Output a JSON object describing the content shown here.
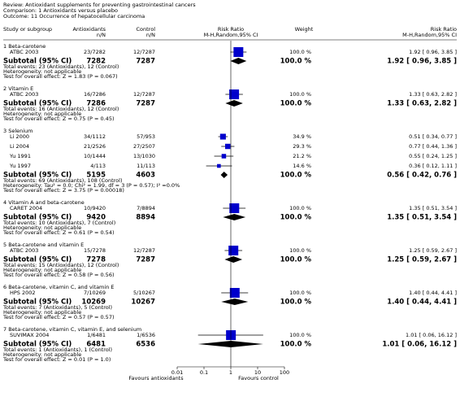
{
  "chart_data": {
    "type": "forest",
    "review": "Review: Antioxidant supplements for preventing gastrointestinal cancers",
    "comparison": "Comparison: 1 Antioxidants versus placebo",
    "outcome": "Outcome: 11 Occurrence of hepatocellular carcinoma",
    "header": {
      "study": "Study or subgroup",
      "treatment": "Antioxidants",
      "treatment_unit": "n/N",
      "control": "Control",
      "control_unit": "n/N",
      "plot_title": "Risk Ratio",
      "plot_method": "M-H,Random,95% CI",
      "weight": "Weight",
      "rr_title": "Risk Ratio",
      "rr_method": "M-H,Random,95% CI"
    },
    "xlim": [
      0.01,
      100
    ],
    "xticks": [
      0.01,
      0.1,
      1,
      10,
      100
    ],
    "log_scale": true,
    "favours_left": "Favours antioxidants",
    "favours_right": "Favours control",
    "box_color": "#0000cc",
    "groups": [
      {
        "title": "1 Beta-carotene",
        "studies": [
          {
            "name": "ATBC 2003",
            "treatment": "23/7282",
            "control": "12/7287",
            "weight": 100.0,
            "weight_label": "100.0 %",
            "rr": 1.92,
            "lo": 0.96,
            "hi": 3.85,
            "rr_label": "1.92 [ 0.96, 3.85 ]"
          }
        ],
        "subtotal": {
          "label": "Subtotal (95% CI)",
          "treatment": 7282,
          "control": 7287,
          "weight_label": "100.0 %",
          "rr": 1.92,
          "lo": 0.96,
          "hi": 3.85,
          "rr_label": "1.92 [ 0.96, 3.85 ]"
        },
        "total_events": "Total events: 23 (Antioxidants), 12 (Control)",
        "heterogeneity": "Heterogeneity: not applicable",
        "overall_effect": "Test for overall effect: Z = 1.83 (P = 0.067)"
      },
      {
        "title": "2 Vitamin E",
        "studies": [
          {
            "name": "ATBC 2003",
            "treatment": "16/7286",
            "control": "12/7287",
            "weight": 100.0,
            "weight_label": "100.0 %",
            "rr": 1.33,
            "lo": 0.63,
            "hi": 2.82,
            "rr_label": "1.33 [ 0.63, 2.82 ]"
          }
        ],
        "subtotal": {
          "label": "Subtotal (95% CI)",
          "treatment": 7286,
          "control": 7287,
          "weight_label": "100.0 %",
          "rr": 1.33,
          "lo": 0.63,
          "hi": 2.82,
          "rr_label": "1.33 [ 0.63, 2.82 ]"
        },
        "total_events": "Total events: 16 (Antioxidants), 12 (Control)",
        "heterogeneity": "Heterogeneity: not applicable",
        "overall_effect": "Test for overall effect: Z = 0.75 (P = 0.45)"
      },
      {
        "title": "3 Selenium",
        "studies": [
          {
            "name": "Li 2000",
            "treatment": "34/1112",
            "control": "57/953",
            "weight": 34.9,
            "weight_label": "34.9 %",
            "rr": 0.51,
            "lo": 0.34,
            "hi": 0.77,
            "rr_label": "0.51 [ 0.34, 0.77 ]"
          },
          {
            "name": "Li 2004",
            "treatment": "21/2526",
            "control": "27/2507",
            "weight": 29.3,
            "weight_label": "29.3 %",
            "rr": 0.77,
            "lo": 0.44,
            "hi": 1.36,
            "rr_label": "0.77 [ 0.44, 1.36 ]"
          },
          {
            "name": "Yu 1991",
            "treatment": "10/1444",
            "control": "13/1030",
            "weight": 21.2,
            "weight_label": "21.2 %",
            "rr": 0.55,
            "lo": 0.24,
            "hi": 1.25,
            "rr_label": "0.55 [ 0.24, 1.25 ]"
          },
          {
            "name": "Yu 1997",
            "treatment": "4/113",
            "control": "11/113",
            "weight": 14.6,
            "weight_label": "14.6 %",
            "rr": 0.36,
            "lo": 0.12,
            "hi": 1.11,
            "rr_label": "0.36 [ 0.12, 1.11 ]"
          }
        ],
        "subtotal": {
          "label": "Subtotal (95% CI)",
          "treatment": 5195,
          "control": 4603,
          "weight_label": "100.0 %",
          "rr": 0.56,
          "lo": 0.42,
          "hi": 0.76,
          "rr_label": "0.56 [ 0.42, 0.76 ]"
        },
        "total_events": "Total events: 69 (Antioxidants), 108 (Control)",
        "heterogeneity": "Heterogeneity: Tau² = 0.0; Chi² = 1.99, df = 3 (P = 0.57); I² =0.0%",
        "overall_effect": "Test for overall effect: Z = 3.75 (P = 0.00018)"
      },
      {
        "title": "4 Vitamin A and beta-carotene",
        "studies": [
          {
            "name": "CARET 2004",
            "treatment": "10/9420",
            "control": "7/8894",
            "weight": 100.0,
            "weight_label": "100.0 %",
            "rr": 1.35,
            "lo": 0.51,
            "hi": 3.54,
            "rr_label": "1.35 [ 0.51, 3.54 ]"
          }
        ],
        "subtotal": {
          "label": "Subtotal (95% CI)",
          "treatment": 9420,
          "control": 8894,
          "weight_label": "100.0 %",
          "rr": 1.35,
          "lo": 0.51,
          "hi": 3.54,
          "rr_label": "1.35 [ 0.51, 3.54 ]"
        },
        "total_events": "Total events: 10 (Antioxidants), 7 (Control)",
        "heterogeneity": "Heterogeneity: not applicable",
        "overall_effect": "Test for overall effect: Z = 0.61 (P = 0.54)"
      },
      {
        "title": "5 Beta-carotene and vitamin E",
        "studies": [
          {
            "name": "ATBC 2003",
            "treatment": "15/7278",
            "control": "12/7287",
            "weight": 100.0,
            "weight_label": "100.0 %",
            "rr": 1.25,
            "lo": 0.59,
            "hi": 2.67,
            "rr_label": "1.25 [ 0.59, 2.67 ]"
          }
        ],
        "subtotal": {
          "label": "Subtotal (95% CI)",
          "treatment": 7278,
          "control": 7287,
          "weight_label": "100.0 %",
          "rr": 1.25,
          "lo": 0.59,
          "hi": 2.67,
          "rr_label": "1.25 [ 0.59, 2.67 ]"
        },
        "total_events": "Total events: 15 (Antioxidants), 12 (Control)",
        "heterogeneity": "Heterogeneity: not applicable",
        "overall_effect": "Test for overall effect: Z = 0.58 (P = 0.56)"
      },
      {
        "title": "6 Beta-carotene, vitamin C, and vitamin E",
        "studies": [
          {
            "name": "HPS 2002",
            "treatment": "7/10269",
            "control": "5/10267",
            "weight": 100.0,
            "weight_label": "100.0 %",
            "rr": 1.4,
            "lo": 0.44,
            "hi": 4.41,
            "rr_label": "1.40 [ 0.44, 4.41 ]"
          }
        ],
        "subtotal": {
          "label": "Subtotal (95% CI)",
          "treatment": 10269,
          "control": 10267,
          "weight_label": "100.0 %",
          "rr": 1.4,
          "lo": 0.44,
          "hi": 4.41,
          "rr_label": "1.40 [ 0.44, 4.41 ]"
        },
        "total_events": "Total events: 7 (Antioxidants), 5 (Control)",
        "heterogeneity": "Heterogeneity: not applicable",
        "overall_effect": "Test for overall effect: Z = 0.57 (P = 0.57)"
      },
      {
        "title": "7 Beta-carotene, vitamin C, vitamin E, and selenium",
        "studies": [
          {
            "name": "SUVIMAX 2004",
            "treatment": "1/6481",
            "control": "1/6536",
            "weight": 100.0,
            "weight_label": "100.0 %",
            "rr": 1.01,
            "lo": 0.06,
            "hi": 16.12,
            "rr_label": "1.01 [ 0.06, 16.12 ]"
          }
        ],
        "subtotal": {
          "label": "Subtotal (95% CI)",
          "treatment": 6481,
          "control": 6536,
          "weight_label": "100.0 %",
          "rr": 1.01,
          "lo": 0.06,
          "hi": 16.12,
          "rr_label": "1.01 [ 0.06, 16.12 ]"
        },
        "total_events": "Total events: 1 (Antioxidants), 1 (Control)",
        "heterogeneity": "Heterogeneity: not applicable",
        "overall_effect": "Test for overall effect: Z = 0.01 (P = 1.0)"
      }
    ]
  }
}
